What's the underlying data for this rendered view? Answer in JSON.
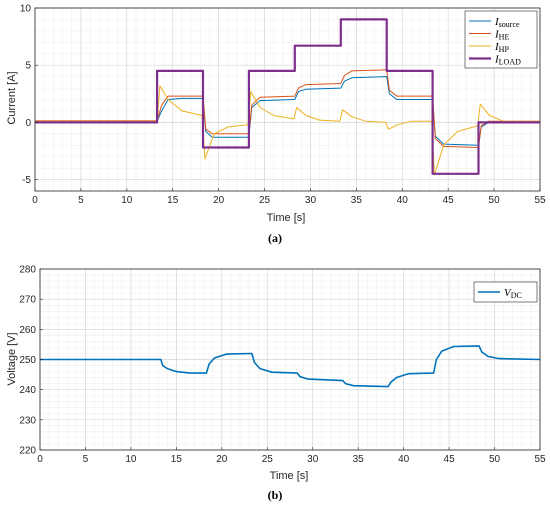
{
  "chart_data": [
    {
      "type": "line",
      "subfig_label": "(a)",
      "xlabel": "Time [s]",
      "ylabel": "Current [A]",
      "xlim": [
        0,
        55
      ],
      "ylim": [
        -6,
        10
      ],
      "xticks": [
        0,
        5,
        10,
        15,
        20,
        25,
        30,
        35,
        40,
        45,
        50,
        55
      ],
      "yticks": [
        -5,
        0,
        5,
        10
      ],
      "grid": true,
      "minor_grid": true,
      "legend_placement": "top-right",
      "series": [
        {
          "name": "I",
          "name_sub": "source",
          "color": "#0072BD",
          "width": 1,
          "points": [
            [
              0,
              0.1
            ],
            [
              13.3,
              0.1
            ],
            [
              13.8,
              1.0
            ],
            [
              14.5,
              2.0
            ],
            [
              16,
              2.1
            ],
            [
              18.3,
              2.1
            ],
            [
              18.6,
              -0.8
            ],
            [
              19.3,
              -1.3
            ],
            [
              23.3,
              -1.3
            ],
            [
              23.6,
              1.3
            ],
            [
              24.5,
              1.9
            ],
            [
              28.3,
              2.0
            ],
            [
              28.7,
              2.7
            ],
            [
              29.5,
              2.9
            ],
            [
              33.3,
              3.0
            ],
            [
              33.7,
              3.6
            ],
            [
              34.5,
              3.9
            ],
            [
              38.3,
              4.0
            ],
            [
              38.6,
              2.5
            ],
            [
              39.4,
              2.0
            ],
            [
              43.3,
              2.0
            ],
            [
              43.6,
              -1.2
            ],
            [
              44.5,
              -1.9
            ],
            [
              48.3,
              -2.0
            ],
            [
              48.6,
              -0.4
            ],
            [
              49.4,
              0.0
            ],
            [
              55,
              0.0
            ]
          ]
        },
        {
          "name": "I",
          "name_sub": "HE",
          "color": "#D95319",
          "width": 1,
          "points": [
            [
              0,
              0.15
            ],
            [
              13.3,
              0.15
            ],
            [
              13.8,
              1.5
            ],
            [
              14.5,
              2.3
            ],
            [
              16,
              2.3
            ],
            [
              18.3,
              2.3
            ],
            [
              18.6,
              -0.6
            ],
            [
              19.3,
              -1.0
            ],
            [
              23.3,
              -1.0
            ],
            [
              23.6,
              1.5
            ],
            [
              24.5,
              2.2
            ],
            [
              28.3,
              2.3
            ],
            [
              28.7,
              3.0
            ],
            [
              29.5,
              3.3
            ],
            [
              33.3,
              3.4
            ],
            [
              33.7,
              4.1
            ],
            [
              34.5,
              4.5
            ],
            [
              38.3,
              4.6
            ],
            [
              38.6,
              2.8
            ],
            [
              39.4,
              2.3
            ],
            [
              43.3,
              2.3
            ],
            [
              43.6,
              -1.4
            ],
            [
              44.5,
              -2.1
            ],
            [
              48.3,
              -2.2
            ],
            [
              48.6,
              -0.3
            ],
            [
              49.4,
              0.1
            ],
            [
              55,
              0.1
            ]
          ]
        },
        {
          "name": "I",
          "name_sub": "HP",
          "color": "#EDB120",
          "width": 1,
          "points": [
            [
              0,
              0.1
            ],
            [
              13.3,
              0.1
            ],
            [
              13.6,
              3.2
            ],
            [
              14.5,
              2.0
            ],
            [
              16,
              1.0
            ],
            [
              18.2,
              0.6
            ],
            [
              18.5,
              -3.2
            ],
            [
              19.5,
              -1.0
            ],
            [
              21,
              -0.4
            ],
            [
              23.2,
              -0.2
            ],
            [
              23.5,
              2.7
            ],
            [
              24.5,
              1.3
            ],
            [
              26,
              0.6
            ],
            [
              28.2,
              0.3
            ],
            [
              28.5,
              1.3
            ],
            [
              29.5,
              0.6
            ],
            [
              31,
              0.2
            ],
            [
              33.2,
              0.1
            ],
            [
              33.5,
              1.1
            ],
            [
              34.5,
              0.5
            ],
            [
              36,
              0.1
            ],
            [
              38.2,
              0.0
            ],
            [
              38.5,
              -0.6
            ],
            [
              39.5,
              -0.2
            ],
            [
              41,
              0.1
            ],
            [
              43.2,
              0.1
            ],
            [
              43.5,
              -4.6
            ],
            [
              44.5,
              -2.0
            ],
            [
              46,
              -0.8
            ],
            [
              48.2,
              -0.3
            ],
            [
              48.5,
              1.6
            ],
            [
              49.5,
              0.6
            ],
            [
              51,
              0.1
            ],
            [
              55,
              0.1
            ]
          ]
        },
        {
          "name": "I",
          "name_sub": "LOAD",
          "color": "#7E2F8E",
          "width": 2.2,
          "points": [
            [
              0,
              0
            ],
            [
              13.3,
              0
            ],
            [
              13.3,
              4.5
            ],
            [
              18.3,
              4.5
            ],
            [
              18.3,
              -2.2
            ],
            [
              23.3,
              -2.2
            ],
            [
              23.3,
              4.5
            ],
            [
              28.3,
              4.5
            ],
            [
              28.3,
              6.7
            ],
            [
              33.3,
              6.7
            ],
            [
              33.3,
              9.0
            ],
            [
              38.3,
              9.0
            ],
            [
              38.3,
              4.5
            ],
            [
              43.3,
              4.5
            ],
            [
              43.3,
              -4.5
            ],
            [
              48.3,
              -4.5
            ],
            [
              48.3,
              0
            ],
            [
              55,
              0
            ]
          ]
        }
      ]
    },
    {
      "type": "line",
      "subfig_label": "(b)",
      "xlabel": "Time [s]",
      "ylabel": "Voltage [V]",
      "xlim": [
        0,
        55
      ],
      "ylim": [
        220,
        280
      ],
      "xticks": [
        0,
        5,
        10,
        15,
        20,
        25,
        30,
        35,
        40,
        45,
        50,
        55
      ],
      "yticks": [
        220,
        230,
        240,
        250,
        260,
        270,
        280
      ],
      "grid": true,
      "minor_grid": true,
      "legend_placement": "top-right",
      "series": [
        {
          "name": "V",
          "name_sub": "DC",
          "color": "#0072BD",
          "width": 1.6,
          "points": [
            [
              0,
              250
            ],
            [
              13.3,
              250
            ],
            [
              13.5,
              248
            ],
            [
              14,
              247
            ],
            [
              15,
              246
            ],
            [
              16.5,
              245.5
            ],
            [
              18.3,
              245.5
            ],
            [
              18.6,
              248.5
            ],
            [
              19.2,
              250.5
            ],
            [
              20.5,
              251.8
            ],
            [
              23.3,
              252
            ],
            [
              23.6,
              249
            ],
            [
              24.2,
              247
            ],
            [
              25.5,
              245.8
            ],
            [
              28.3,
              245.5
            ],
            [
              28.6,
              244.3
            ],
            [
              29.5,
              243.5
            ],
            [
              33.3,
              243
            ],
            [
              33.6,
              242
            ],
            [
              34.5,
              241.3
            ],
            [
              38.3,
              241
            ],
            [
              38.6,
              242.5
            ],
            [
              39.2,
              244
            ],
            [
              40.5,
              245.3
            ],
            [
              43.3,
              245.5
            ],
            [
              43.6,
              250
            ],
            [
              44.2,
              252.8
            ],
            [
              45.5,
              254.3
            ],
            [
              48.3,
              254.5
            ],
            [
              48.6,
              252.5
            ],
            [
              49.3,
              251
            ],
            [
              50.5,
              250.3
            ],
            [
              55,
              250
            ]
          ]
        }
      ]
    }
  ]
}
